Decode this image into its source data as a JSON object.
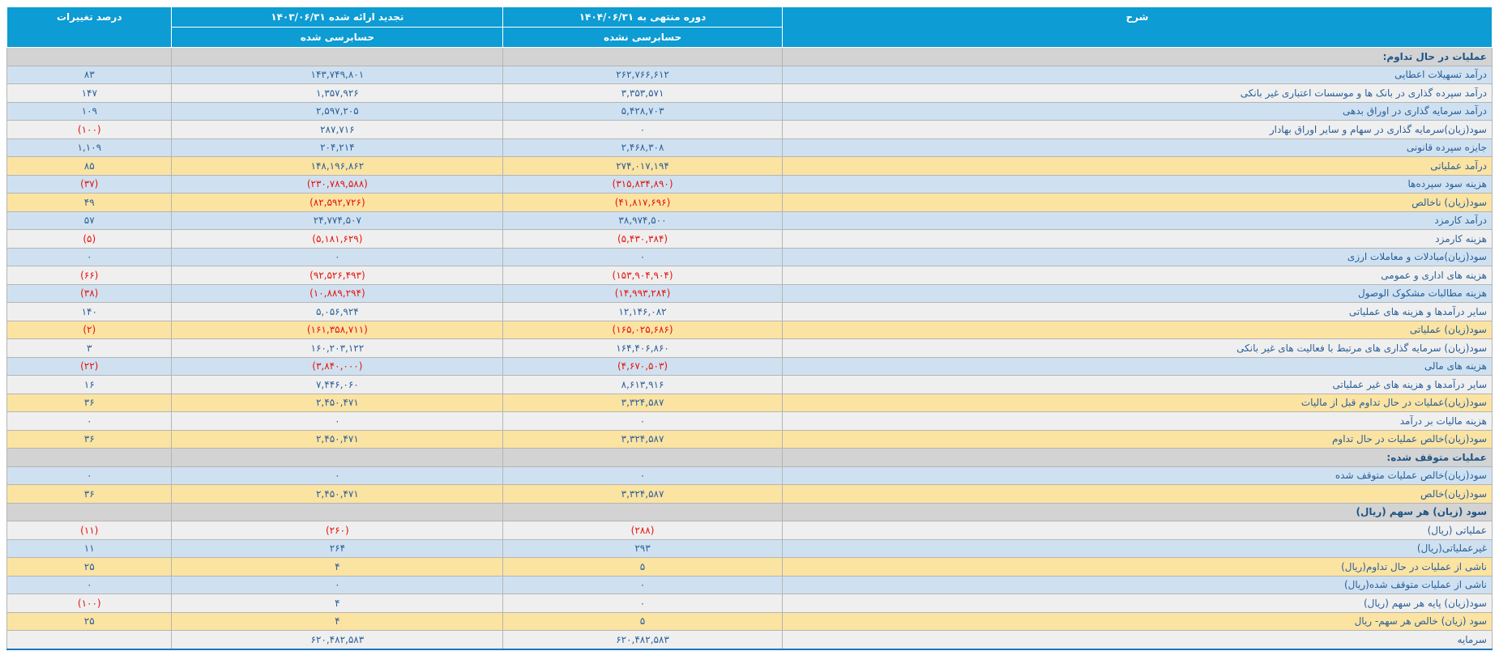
{
  "colors": {
    "header_bg": "#0d9cd3",
    "row_blue": "#cfe1f0",
    "row_white": "#efefef",
    "row_yellow": "#fbe3a2",
    "section_bg": "#d3d3d3",
    "text_blue": "#2a5f9a",
    "section_text": "#1d5586",
    "neg_red": "#e8120c",
    "bottom_border": "#1b75bc"
  },
  "header": {
    "description": "شرح",
    "current": {
      "period": "دوره منتهی به ۱۴۰۴/۰۶/۳۱",
      "status": "حسابرسی نشده"
    },
    "restated": {
      "period": "تجدید ارائه شده ۱۴۰۳/۰۶/۳۱",
      "status": "حسابرسی شده"
    },
    "pct": "درصد تغییرات"
  },
  "rows": [
    {
      "type": "section",
      "label": "عملیات در حال تداوم:"
    },
    {
      "type": "data",
      "bg": "blue",
      "label": "درآمد تسهیلات اعطایی",
      "current": "۲۶۲,۷۶۶,۶۱۲",
      "restated": "۱۴۳,۷۴۹,۸۰۱",
      "pct": "۸۳"
    },
    {
      "type": "data",
      "bg": "white",
      "label": "درآمد سپرده گذاری در بانک ها و موسسات اعتباری غیر بانکی",
      "current": "۳,۳۵۳,۵۷۱",
      "restated": "۱,۳۵۷,۹۲۶",
      "pct": "۱۴۷"
    },
    {
      "type": "data",
      "bg": "blue",
      "label": "درآمد سرمایه گذاری در اوراق بدهی",
      "current": "۵,۴۲۸,۷۰۳",
      "restated": "۲,۵۹۷,۲۰۵",
      "pct": "۱۰۹"
    },
    {
      "type": "data",
      "bg": "white",
      "label": "سود(زیان)سرمایه گذاری در سهام و سایر اوراق بهادار",
      "current": "۰",
      "restated": "۲۸۷,۷۱۶",
      "pct": "(۱۰۰)"
    },
    {
      "type": "data",
      "bg": "blue",
      "label": "جایزه سپرده قانونی",
      "current": "۲,۴۶۸,۳۰۸",
      "restated": "۲۰۴,۲۱۴",
      "pct": "۱,۱۰۹"
    },
    {
      "type": "data",
      "bg": "yellow",
      "label": "درآمد عملیاتی",
      "current": "۲۷۴,۰۱۷,۱۹۴",
      "restated": "۱۴۸,۱۹۶,۸۶۲",
      "pct": "۸۵"
    },
    {
      "type": "data",
      "bg": "blue",
      "label": "هزینه سود سپرده‌ها",
      "current": "(۳۱۵,۸۳۴,۸۹۰)",
      "restated": "(۲۳۰,۷۸۹,۵۸۸)",
      "pct": "(۳۷)"
    },
    {
      "type": "data",
      "bg": "yellow",
      "label": "سود(زیان) ناخالص",
      "current": "(۴۱,۸۱۷,۶۹۶)",
      "restated": "(۸۲,۵۹۲,۷۲۶)",
      "pct": "۴۹"
    },
    {
      "type": "data",
      "bg": "blue",
      "label": "درآمد کارمزد",
      "current": "۳۸,۹۷۴,۵۰۰",
      "restated": "۲۴,۷۷۴,۵۰۷",
      "pct": "۵۷"
    },
    {
      "type": "data",
      "bg": "white",
      "label": "هزینه کارمزد",
      "current": "(۵,۴۳۰,۳۸۴)",
      "restated": "(۵,۱۸۱,۶۲۹)",
      "pct": "(۵)"
    },
    {
      "type": "data",
      "bg": "blue",
      "label": "سود(زیان)مبادلات و معاملات ارزی",
      "current": "۰",
      "restated": "۰",
      "pct": "۰"
    },
    {
      "type": "data",
      "bg": "white",
      "label": "هزینه های اداری و عمومی",
      "current": "(۱۵۳,۹۰۴,۹۰۴)",
      "restated": "(۹۲,۵۲۶,۴۹۳)",
      "pct": "(۶۶)"
    },
    {
      "type": "data",
      "bg": "blue",
      "label": "هزینه مطالبات مشکوک الوصول",
      "current": "(۱۴,۹۹۳,۲۸۴)",
      "restated": "(۱۰,۸۸۹,۲۹۴)",
      "pct": "(۳۸)"
    },
    {
      "type": "data",
      "bg": "white",
      "label": "سایر درآمدها و هزینه های عملیاتی",
      "current": "۱۲,۱۴۶,۰۸۲",
      "restated": "۵,۰۵۶,۹۲۴",
      "pct": "۱۴۰"
    },
    {
      "type": "data",
      "bg": "yellow",
      "label": "سود(زیان) عملیاتی",
      "current": "(۱۶۵,۰۲۵,۶۸۶)",
      "restated": "(۱۶۱,۳۵۸,۷۱۱)",
      "pct": "(۲)"
    },
    {
      "type": "data",
      "bg": "white",
      "label": "سود(زیان) سرمایه گذاری های مرتبط با فعالیت های غیر بانکی",
      "current": "۱۶۴,۴۰۶,۸۶۰",
      "restated": "۱۶۰,۲۰۳,۱۲۲",
      "pct": "۳"
    },
    {
      "type": "data",
      "bg": "blue",
      "label": "هزینه های مالی",
      "current": "(۴,۶۷۰,۵۰۳)",
      "restated": "(۳,۸۴۰,۰۰۰)",
      "pct": "(۲۲)"
    },
    {
      "type": "data",
      "bg": "white",
      "label": "سایر درآمدها و هزینه های غیر عملیاتی",
      "current": "۸,۶۱۳,۹۱۶",
      "restated": "۷,۴۴۶,۰۶۰",
      "pct": "۱۶"
    },
    {
      "type": "data",
      "bg": "yellow",
      "label": "سود(زیان)عملیات در حال تداوم قبل از مالیات",
      "current": "۳,۳۲۴,۵۸۷",
      "restated": "۲,۴۵۰,۴۷۱",
      "pct": "۳۶"
    },
    {
      "type": "data",
      "bg": "white",
      "label": "هزینه مالیات بر درآمد",
      "current": "۰",
      "restated": "۰",
      "pct": "۰"
    },
    {
      "type": "data",
      "bg": "yellow",
      "label": "سود(زیان)خالص عملیات در حال تداوم",
      "current": "۳,۳۲۴,۵۸۷",
      "restated": "۲,۴۵۰,۴۷۱",
      "pct": "۳۶"
    },
    {
      "type": "section",
      "label": "عملیات متوقف شده:"
    },
    {
      "type": "data",
      "bg": "blue",
      "label": "سود(زیان)خالص عملیات متوقف شده",
      "current": "۰",
      "restated": "۰",
      "pct": "۰"
    },
    {
      "type": "data",
      "bg": "yellow",
      "label": "سود(زیان)خالص",
      "current": "۳,۳۲۴,۵۸۷",
      "restated": "۲,۴۵۰,۴۷۱",
      "pct": "۳۶"
    },
    {
      "type": "section",
      "label": "سود (زیان) هر سهم (ریال)"
    },
    {
      "type": "data",
      "bg": "white",
      "label": "عملیاتی (ریال)",
      "current": "(۲۸۸)",
      "restated": "(۲۶۰)",
      "pct": "(۱۱)"
    },
    {
      "type": "data",
      "bg": "blue",
      "label": "غیرعملیاتی(ریال)",
      "current": "۲۹۳",
      "restated": "۲۶۴",
      "pct": "۱۱"
    },
    {
      "type": "data",
      "bg": "yellow",
      "label": "ناشی از عملیات در حال تداوم(ریال)",
      "current": "۵",
      "restated": "۴",
      "pct": "۲۵"
    },
    {
      "type": "data",
      "bg": "blue",
      "label": "ناشی از عملیات متوقف شده(ریال)",
      "current": "۰",
      "restated": "۰",
      "pct": "۰"
    },
    {
      "type": "data",
      "bg": "white",
      "label": "سود(زیان) پایه هر سهم (ریال)",
      "current": "۰",
      "restated": "۴",
      "pct": "(۱۰۰)"
    },
    {
      "type": "data",
      "bg": "yellow",
      "label": "سود (زیان) خالص هر سهم- ریال",
      "current": "۵",
      "restated": "۴",
      "pct": "۲۵"
    },
    {
      "type": "data",
      "bg": "white",
      "label": "سرمایه",
      "current": "۶۲۰,۴۸۲,۵۸۳",
      "restated": "۶۲۰,۴۸۲,۵۸۳",
      "pct": ""
    }
  ]
}
